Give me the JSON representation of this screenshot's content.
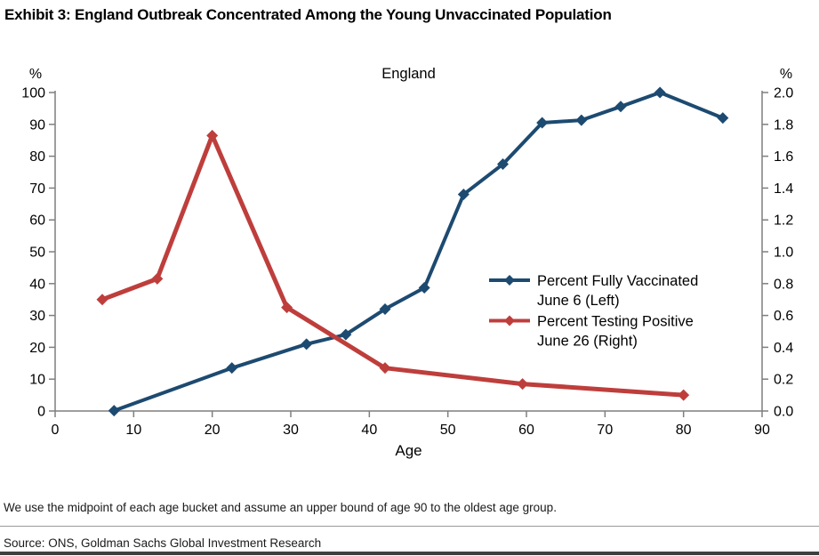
{
  "page": {
    "exhibit_title": "Exhibit 3: England Outbreak Concentrated Among the Young Unvaccinated Population",
    "footnote": "We use the midpoint of each age bucket and assume an upper bound of age 90 to the oldest age group.",
    "source": "Source: ONS, Goldman Sachs Global Investment Research"
  },
  "chart_data": {
    "type": "line",
    "title": "England",
    "xlabel": "Age",
    "grid": false,
    "legend_position": "inside-right",
    "axis_color": "#7f7f7f",
    "x_axis": {
      "min": 0,
      "max": 90,
      "tick_step": 10
    },
    "left_axis": {
      "label": "%",
      "min": 0,
      "max": 100,
      "tick_step": 10
    },
    "right_axis": {
      "label": "%",
      "min": 0.0,
      "max": 2.0,
      "tick_step": 0.2
    },
    "series": [
      {
        "name": "Percent Fully Vaccinated June 6 (Left)",
        "legend_lines": [
          "Percent Fully Vaccinated",
          "June 6 (Left)"
        ],
        "axis": "left",
        "color": "#1d4a70",
        "marker": "diamond",
        "line_width": 4,
        "points": [
          [
            7.5,
            0.1
          ],
          [
            22.5,
            13.5
          ],
          [
            32,
            21
          ],
          [
            37,
            24
          ],
          [
            42,
            32
          ],
          [
            47,
            38.7
          ],
          [
            52,
            68
          ],
          [
            57,
            77.5
          ],
          [
            62,
            90.5
          ],
          [
            67,
            91.3
          ],
          [
            72,
            95.6
          ],
          [
            77,
            100
          ],
          [
            85,
            92
          ]
        ]
      },
      {
        "name": "Percent Testing Positive June 26 (Right)",
        "legend_lines": [
          "Percent Testing Positive",
          "June 26 (Right)"
        ],
        "axis": "right",
        "color": "#be3e3c",
        "marker": "diamond",
        "line_width": 5,
        "points": [
          [
            6,
            0.7
          ],
          [
            13,
            0.83
          ],
          [
            20,
            1.73
          ],
          [
            29.5,
            0.65
          ],
          [
            42,
            0.27
          ],
          [
            59.5,
            0.17
          ],
          [
            80,
            0.1
          ]
        ]
      }
    ]
  }
}
